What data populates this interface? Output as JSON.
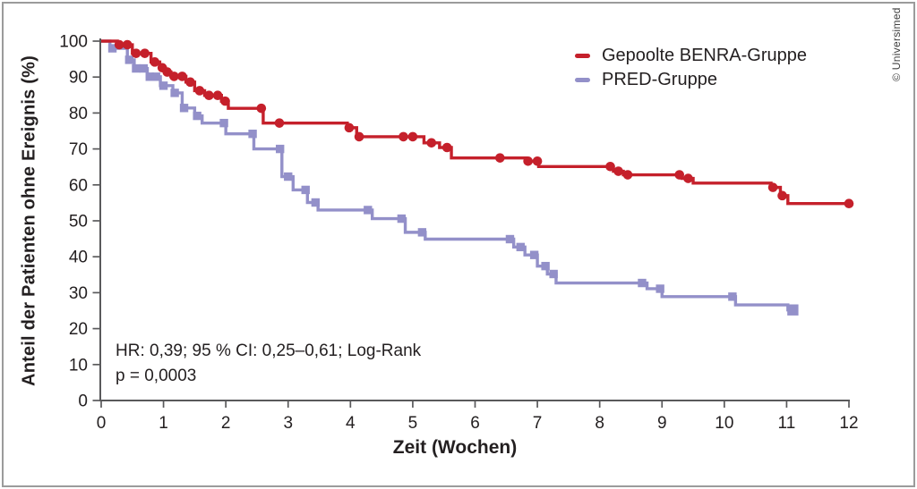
{
  "frame": {
    "border_color": "#9b9b9b"
  },
  "style": {
    "axis_color": "#59595b",
    "text_color": "#231f20",
    "background": "#ffffff"
  },
  "legend": {
    "items": [
      {
        "id": "benra",
        "label": "Gepoolte BENRA-Gruppe",
        "color": "#c5202b"
      },
      {
        "id": "pred",
        "label": "PRED-Gruppe",
        "color": "#9390c9"
      }
    ]
  },
  "annotation": {
    "line1": "HR: 0,39; 95 % CI: 0,25–0,61; Log-Rank",
    "line2": "p = 0,0003"
  },
  "copyright": "© Universimed",
  "chart_data": {
    "type": "line",
    "variant": "kaplan_meier_step",
    "title": "",
    "xlabel": "Zeit (Wochen)",
    "ylabel": "Anteil der Patienten ohne Ereignis (%)",
    "xlim": [
      0,
      12
    ],
    "ylim": [
      0,
      100
    ],
    "xticks": [
      0,
      1,
      2,
      3,
      4,
      5,
      6,
      7,
      8,
      9,
      10,
      11,
      12
    ],
    "yticks": [
      0,
      10,
      20,
      30,
      40,
      50,
      60,
      70,
      80,
      90,
      100
    ],
    "grid": false,
    "legend_position": "top-right-inside",
    "series": [
      {
        "id": "benra",
        "name": "Gepoolte BENRA-Gruppe",
        "color": "#c5202b",
        "marker": "circle",
        "end_time": 12.0,
        "steps": [
          [
            0,
            100
          ],
          [
            0.26,
            99
          ],
          [
            0.5,
            96.6
          ],
          [
            0.8,
            94.2
          ],
          [
            0.94,
            92.6
          ],
          [
            1.03,
            91.4
          ],
          [
            1.12,
            90.2
          ],
          [
            1.36,
            88.6
          ],
          [
            1.5,
            86.2
          ],
          [
            1.66,
            84.9
          ],
          [
            1.93,
            83.3
          ],
          [
            2.04,
            81.3
          ],
          [
            2.6,
            77.2
          ],
          [
            3.95,
            75.9
          ],
          [
            4.1,
            73.4
          ],
          [
            5.18,
            71.7
          ],
          [
            5.43,
            70.4
          ],
          [
            5.62,
            67.5
          ],
          [
            6.82,
            66.6
          ],
          [
            7.02,
            65.1
          ],
          [
            8.22,
            63.8
          ],
          [
            8.38,
            62.8
          ],
          [
            9.32,
            61.8
          ],
          [
            9.5,
            60.5
          ],
          [
            10.75,
            59.3
          ],
          [
            10.9,
            57.0
          ],
          [
            11.02,
            54.8
          ]
        ],
        "censor_markers": [
          [
            0.29,
            99
          ],
          [
            0.42,
            99
          ],
          [
            0.56,
            96.6
          ],
          [
            0.7,
            96.6
          ],
          [
            0.86,
            94.2
          ],
          [
            0.98,
            92.6
          ],
          [
            1.06,
            91.4
          ],
          [
            1.17,
            90.2
          ],
          [
            1.3,
            90.2
          ],
          [
            1.43,
            88.6
          ],
          [
            1.58,
            86.2
          ],
          [
            1.73,
            84.9
          ],
          [
            1.87,
            84.9
          ],
          [
            1.99,
            83.3
          ],
          [
            2.57,
            81.3
          ],
          [
            2.86,
            77.2
          ],
          [
            3.98,
            75.9
          ],
          [
            4.14,
            73.4
          ],
          [
            4.85,
            73.4
          ],
          [
            5.0,
            73.4
          ],
          [
            5.3,
            71.7
          ],
          [
            5.55,
            70.4
          ],
          [
            6.4,
            67.5
          ],
          [
            6.85,
            66.6
          ],
          [
            7.0,
            66.6
          ],
          [
            8.17,
            65.1
          ],
          [
            8.3,
            63.8
          ],
          [
            8.45,
            62.8
          ],
          [
            9.28,
            62.8
          ],
          [
            9.42,
            61.8
          ],
          [
            10.78,
            59.3
          ],
          [
            10.93,
            57.0
          ],
          [
            12.0,
            54.8
          ]
        ]
      },
      {
        "id": "pred",
        "name": "PRED-Gruppe",
        "color": "#9390c9",
        "marker": "square",
        "end_time": 11.15,
        "steps": [
          [
            0,
            100
          ],
          [
            0.14,
            98
          ],
          [
            0.42,
            94.8
          ],
          [
            0.53,
            92.4
          ],
          [
            0.74,
            90.1
          ],
          [
            0.95,
            87.6
          ],
          [
            1.15,
            85.6
          ],
          [
            1.3,
            81.4
          ],
          [
            1.5,
            79.2
          ],
          [
            1.62,
            77.2
          ],
          [
            2.0,
            74.2
          ],
          [
            2.45,
            70.0
          ],
          [
            2.9,
            62.3
          ],
          [
            3.08,
            58.6
          ],
          [
            3.31,
            55.1
          ],
          [
            3.48,
            53.0
          ],
          [
            4.35,
            50.6
          ],
          [
            4.88,
            46.8
          ],
          [
            5.2,
            44.9
          ],
          [
            6.62,
            42.7
          ],
          [
            6.8,
            40.5
          ],
          [
            7.0,
            37.4
          ],
          [
            7.16,
            35.2
          ],
          [
            7.3,
            32.7
          ],
          [
            8.76,
            31.1
          ],
          [
            9.0,
            28.9
          ],
          [
            10.18,
            26.6
          ],
          [
            11.02,
            25.2
          ]
        ],
        "censor_markers": [
          [
            0.18,
            98
          ],
          [
            0.45,
            94.8
          ],
          [
            0.56,
            92.4
          ],
          [
            0.68,
            92.4
          ],
          [
            0.78,
            90.1
          ],
          [
            0.88,
            90.1
          ],
          [
            1.0,
            87.6
          ],
          [
            1.18,
            85.6
          ],
          [
            1.33,
            81.4
          ],
          [
            1.54,
            79.2
          ],
          [
            1.97,
            77.2
          ],
          [
            2.43,
            74.2
          ],
          [
            2.87,
            70.0
          ],
          [
            3.0,
            62.3
          ],
          [
            3.28,
            58.6
          ],
          [
            3.44,
            55.1
          ],
          [
            4.28,
            53.0
          ],
          [
            4.82,
            50.6
          ],
          [
            5.15,
            46.8
          ],
          [
            6.56,
            44.9
          ],
          [
            6.73,
            42.7
          ],
          [
            6.95,
            40.5
          ],
          [
            7.13,
            37.4
          ],
          [
            7.26,
            35.2
          ],
          [
            8.68,
            32.7
          ],
          [
            8.97,
            31.1
          ],
          [
            10.13,
            28.9
          ]
        ],
        "final_marker": [
          11.1,
          25.2
        ]
      }
    ]
  }
}
